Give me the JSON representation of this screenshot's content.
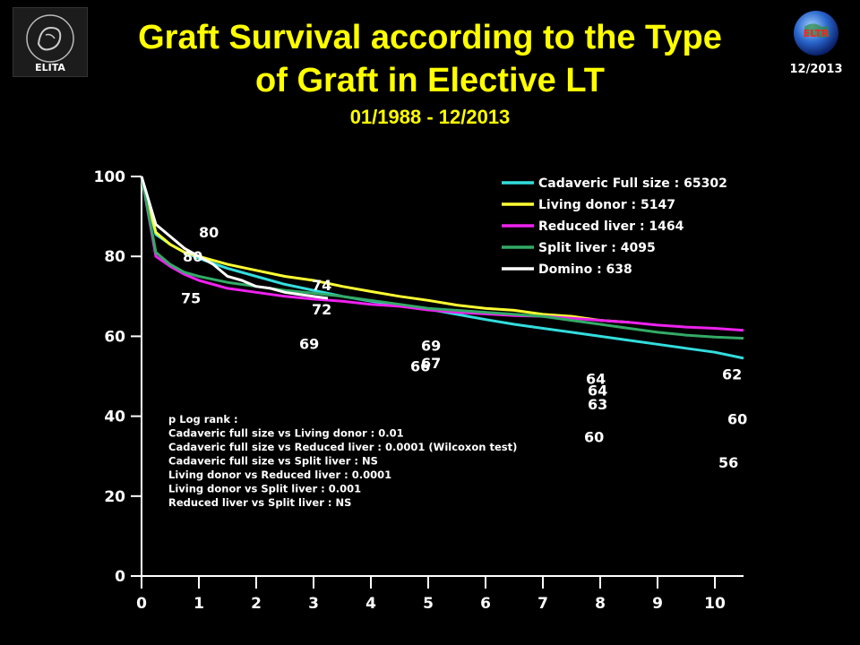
{
  "header": {
    "title_line1": "Graft Survival according to the Type",
    "title_line2": "of Graft in Elective LT",
    "subtitle": "01/1988 - 12/2013",
    "date_tag": "12/2013",
    "logo_left_text": "ELITA",
    "logo_right_text": "ELTR"
  },
  "chart_data": {
    "type": "line",
    "title": "Graft Survival according to the Type of Graft in Elective LT",
    "subtitle": "01/1988 - 12/2013",
    "xlabel": "",
    "ylabel": "",
    "xlim": [
      0,
      10.5
    ],
    "ylim": [
      0,
      100
    ],
    "x_ticks": [
      0,
      1,
      2,
      3,
      4,
      5,
      6,
      7,
      8,
      9,
      10
    ],
    "y_ticks": [
      0,
      20,
      40,
      60,
      80,
      100
    ],
    "grid": false,
    "legend_position": "top-right",
    "series": [
      {
        "name": "Cadaveric Full size : 65302",
        "color": "#33dddd",
        "x": [
          0,
          0.25,
          0.5,
          0.75,
          1,
          1.5,
          2,
          2.5,
          3,
          3.5,
          4,
          4.5,
          5,
          5.5,
          6,
          6.5,
          7,
          7.5,
          8,
          8.5,
          9,
          9.5,
          10,
          10.5
        ],
        "y": [
          100,
          85.5,
          83,
          81,
          79.5,
          77,
          75,
          73,
          71.5,
          70,
          68.8,
          67.8,
          66.8,
          65.5,
          64.2,
          63,
          62,
          61,
          60,
          59,
          58,
          57,
          56,
          54.5
        ]
      },
      {
        "name": "Living donor : 5147",
        "color": "#ffff33",
        "x": [
          0,
          0.25,
          0.5,
          0.75,
          1,
          1.5,
          2,
          2.5,
          3,
          3.5,
          4,
          4.5,
          5,
          5.5,
          6,
          6.5,
          7,
          7.5,
          8,
          8.5
        ],
        "y": [
          100,
          86,
          83,
          81,
          80,
          78,
          76.5,
          75,
          74,
          72.5,
          71.2,
          70,
          69,
          67.8,
          67,
          66.5,
          65.5,
          65,
          64,
          63.5
        ]
      },
      {
        "name": "Reduced liver : 1464",
        "color": "#ee22ee",
        "x": [
          0,
          0.25,
          0.5,
          0.75,
          1,
          1.5,
          2,
          2.5,
          3,
          3.5,
          4,
          4.5,
          5,
          5.5,
          6,
          6.5,
          7,
          7.5,
          8,
          8.5,
          9,
          9.5,
          10,
          10.5
        ],
        "y": [
          100,
          80,
          77.5,
          75.5,
          74,
          72,
          71,
          70,
          69.3,
          68.8,
          68,
          67.5,
          66.6,
          66,
          65.6,
          65.2,
          65,
          64.5,
          64,
          63.5,
          62.8,
          62.3,
          62,
          61.5
        ]
      },
      {
        "name": "Split liver : 4095",
        "color": "#33aa66",
        "x": [
          0,
          0.25,
          0.5,
          0.75,
          1,
          1.5,
          2,
          2.5,
          3,
          3.5,
          4,
          4.5,
          5,
          5.5,
          6,
          6.5,
          7,
          7.5,
          8,
          8.5,
          9,
          9.5,
          10,
          10.5
        ],
        "y": [
          100,
          81,
          78,
          76,
          75,
          73.5,
          72.5,
          71.5,
          70.8,
          70,
          69,
          68,
          67,
          66.5,
          66,
          65.5,
          65,
          64,
          63,
          62,
          61,
          60.3,
          59.8,
          59.5
        ]
      },
      {
        "name": "Domino : 638",
        "color": "#ffffff",
        "x": [
          0,
          0.25,
          0.5,
          0.75,
          1,
          1.25,
          1.5,
          1.75,
          2,
          2.25,
          2.5,
          2.75,
          3,
          3.25
        ],
        "y": [
          100,
          88,
          85,
          82,
          80,
          78,
          75,
          74,
          72.5,
          72,
          71,
          70.5,
          70,
          69.5
        ]
      }
    ],
    "data_labels": [
      {
        "text": "80",
        "x": 1,
        "y": 80
      },
      {
        "text": "80",
        "x": 1,
        "y": 80
      },
      {
        "text": "75",
        "x": 1,
        "y": 75
      },
      {
        "text": "74",
        "x": 3,
        "y": 74
      },
      {
        "text": "72",
        "x": 3,
        "y": 72
      },
      {
        "text": "69",
        "x": 3,
        "y": 69
      },
      {
        "text": "69",
        "x": 5,
        "y": 69
      },
      {
        "text": "67",
        "x": 5,
        "y": 67
      },
      {
        "text": "66",
        "x": 5,
        "y": 66
      },
      {
        "text": "64",
        "x": 8,
        "y": 64
      },
      {
        "text": "64",
        "x": 8,
        "y": 64
      },
      {
        "text": "63",
        "x": 8,
        "y": 63
      },
      {
        "text": "60",
        "x": 8,
        "y": 60
      },
      {
        "text": "62",
        "x": 10.5,
        "y": 62
      },
      {
        "text": "60",
        "x": 10.5,
        "y": 60
      },
      {
        "text": "56",
        "x": 10.5,
        "y": 56
      }
    ],
    "annotation": [
      "p Log rank :",
      "Cadaveric full size vs Living donor : 0.01",
      "Cadaveric full size vs Reduced liver : 0.0001 (Wilcoxon test)",
      "Cadaveric full size vs Split liver : NS",
      "Living donor vs Reduced liver : 0.0001",
      "Living donor vs Split liver : 0.001",
      "Reduced liver vs Split liver : NS"
    ]
  }
}
